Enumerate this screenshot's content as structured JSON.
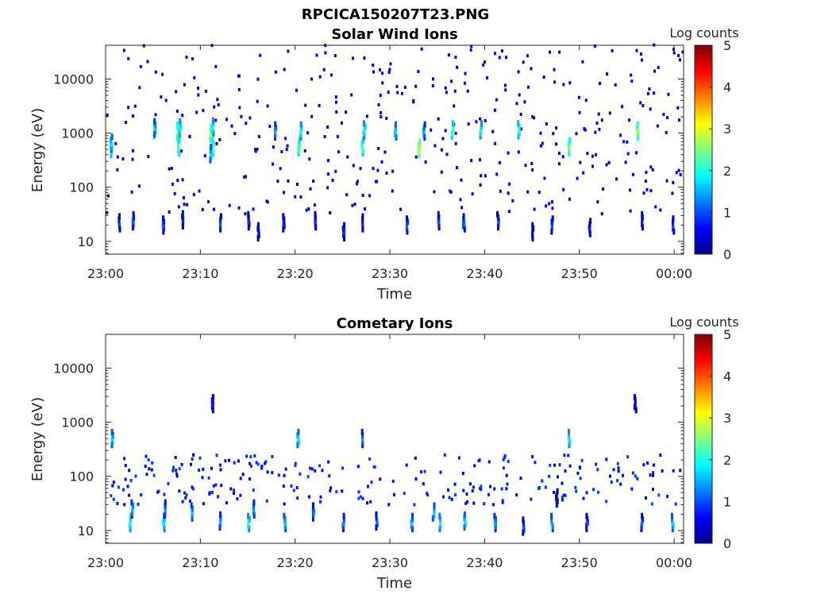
{
  "figure_title": "RPCICA150207T23.PNG",
  "chart_data": [
    {
      "type": "heatmap",
      "title": "Solar Wind Ions",
      "xlabel": "Time",
      "ylabel": "Energy (eV)",
      "x_ticks": [
        "23:00",
        "23:10",
        "23:20",
        "23:30",
        "23:40",
        "23:50",
        "00:00"
      ],
      "x_tick_minutes": [
        0,
        10,
        20,
        30,
        40,
        50,
        60
      ],
      "xlim_minutes": [
        0,
        61
      ],
      "y_scale": "log",
      "y_ticks": [
        "10",
        "100",
        "1000",
        "10000"
      ],
      "y_tick_values": [
        10,
        100,
        1000,
        10000
      ],
      "ylim": [
        5.8,
        42000
      ],
      "colorbar": {
        "label": "Log counts",
        "range": [
          0,
          5
        ],
        "ticks": [
          "0",
          "1",
          "2",
          "3",
          "4",
          "5"
        ],
        "colormap": "jet"
      },
      "features": [
        {
          "t": 0.5,
          "e": 520,
          "v": 2.2
        },
        {
          "t": 0.5,
          "e": 650,
          "v": 1.8
        },
        {
          "t": 5.0,
          "e": 1150,
          "v": 2.5
        },
        {
          "t": 5.1,
          "e": 1250,
          "v": 1.6
        },
        {
          "t": 7.5,
          "e": 1100,
          "v": 2.6
        },
        {
          "t": 7.6,
          "e": 560,
          "v": 2.4
        },
        {
          "t": 7.7,
          "e": 1250,
          "v": 2.0
        },
        {
          "t": 11.0,
          "e": 1000,
          "v": 2.8
        },
        {
          "t": 11.2,
          "e": 560,
          "v": 2.5
        },
        {
          "t": 11.0,
          "e": 420,
          "v": 1.7
        },
        {
          "t": 11.2,
          "e": 1300,
          "v": 2.0
        },
        {
          "t": 17.8,
          "e": 1100,
          "v": 1.5
        },
        {
          "t": 20.3,
          "e": 560,
          "v": 2.4
        },
        {
          "t": 20.5,
          "e": 1100,
          "v": 2.0
        },
        {
          "t": 27.0,
          "e": 560,
          "v": 2.3
        },
        {
          "t": 27.2,
          "e": 1150,
          "v": 2.0
        },
        {
          "t": 30.5,
          "e": 1100,
          "v": 1.8
        },
        {
          "t": 33.0,
          "e": 520,
          "v": 2.9
        },
        {
          "t": 33.5,
          "e": 1100,
          "v": 1.5
        },
        {
          "t": 36.5,
          "e": 1150,
          "v": 2.3
        },
        {
          "t": 39.5,
          "e": 1150,
          "v": 2.0
        },
        {
          "t": 43.5,
          "e": 1150,
          "v": 2.2
        },
        {
          "t": 48.8,
          "e": 560,
          "v": 2.6
        },
        {
          "t": 56.0,
          "e": 1100,
          "v": 2.7
        },
        {
          "t": 1.3,
          "e": 22,
          "v": 1.0
        },
        {
          "t": 2.8,
          "e": 24,
          "v": 1.1
        },
        {
          "t": 6.0,
          "e": 20,
          "v": 1.1
        },
        {
          "t": 8.0,
          "e": 25,
          "v": 0.8
        },
        {
          "t": 12.0,
          "e": 22,
          "v": 1.1
        },
        {
          "t": 15.0,
          "e": 24,
          "v": 0.9
        },
        {
          "t": 16.0,
          "e": 15,
          "v": 0.7
        },
        {
          "t": 18.7,
          "e": 22,
          "v": 0.8
        },
        {
          "t": 22.0,
          "e": 24,
          "v": 0.9
        },
        {
          "t": 25.0,
          "e": 15,
          "v": 1.0
        },
        {
          "t": 27.0,
          "e": 22,
          "v": 0.8
        },
        {
          "t": 31.7,
          "e": 20,
          "v": 1.2
        },
        {
          "t": 35.0,
          "e": 24,
          "v": 1.1
        },
        {
          "t": 37.7,
          "e": 22,
          "v": 1.2
        },
        {
          "t": 41.3,
          "e": 24,
          "v": 1.0
        },
        {
          "t": 45.0,
          "e": 15,
          "v": 0.7
        },
        {
          "t": 47.0,
          "e": 20,
          "v": 1.1
        },
        {
          "t": 51.0,
          "e": 18,
          "v": 0.8
        },
        {
          "t": 56.5,
          "e": 24,
          "v": 0.8
        },
        {
          "t": 59.8,
          "e": 20,
          "v": 1.0
        }
      ]
    },
    {
      "type": "heatmap",
      "title": "Cometary Ions",
      "xlabel": "Time",
      "ylabel": "Energy (eV)",
      "x_ticks": [
        "23:00",
        "23:10",
        "23:20",
        "23:30",
        "23:40",
        "23:50",
        "00:00"
      ],
      "x_tick_minutes": [
        0,
        10,
        20,
        30,
        40,
        50,
        60
      ],
      "xlim_minutes": [
        0,
        61
      ],
      "y_scale": "log",
      "y_ticks": [
        "10",
        "100",
        "1000",
        "10000"
      ],
      "y_tick_values": [
        10,
        100,
        1000,
        10000
      ],
      "ylim": [
        5.8,
        42000
      ],
      "colorbar": {
        "label": "Log counts",
        "range": [
          0,
          5
        ],
        "ticks": [
          "0",
          "1",
          "2",
          "3",
          "4",
          "5"
        ],
        "colormap": "jet"
      },
      "features": [
        {
          "t": 2.5,
          "e": 14,
          "v": 2.1
        },
        {
          "t": 2.7,
          "e": 25,
          "v": 1.6
        },
        {
          "t": 6.0,
          "e": 14,
          "v": 1.9
        },
        {
          "t": 6.2,
          "e": 25,
          "v": 1.4
        },
        {
          "t": 9.0,
          "e": 22,
          "v": 1.6
        },
        {
          "t": 12.0,
          "e": 15,
          "v": 1.5
        },
        {
          "t": 15.0,
          "e": 14,
          "v": 2.0
        },
        {
          "t": 15.5,
          "e": 25,
          "v": 1.5
        },
        {
          "t": 18.8,
          "e": 14,
          "v": 1.7
        },
        {
          "t": 21.8,
          "e": 22,
          "v": 1.3
        },
        {
          "t": 25.0,
          "e": 14,
          "v": 1.4
        },
        {
          "t": 28.5,
          "e": 15,
          "v": 1.2
        },
        {
          "t": 32.2,
          "e": 14,
          "v": 1.6
        },
        {
          "t": 34.5,
          "e": 22,
          "v": 1.7
        },
        {
          "t": 35.2,
          "e": 14,
          "v": 1.9
        },
        {
          "t": 37.8,
          "e": 15,
          "v": 1.8
        },
        {
          "t": 41.0,
          "e": 14,
          "v": 1.5
        },
        {
          "t": 44.0,
          "e": 12,
          "v": 1.1
        },
        {
          "t": 47.0,
          "e": 14,
          "v": 1.6
        },
        {
          "t": 47.5,
          "e": 40,
          "v": 0.6
        },
        {
          "t": 50.7,
          "e": 14,
          "v": 1.1
        },
        {
          "t": 56.5,
          "e": 14,
          "v": 1.2
        },
        {
          "t": 59.7,
          "e": 14,
          "v": 1.7
        },
        {
          "t": 0.6,
          "e": 500,
          "v": 1.7
        },
        {
          "t": 20.2,
          "e": 500,
          "v": 1.8
        },
        {
          "t": 27.0,
          "e": 500,
          "v": 1.4
        },
        {
          "t": 48.8,
          "e": 500,
          "v": 2.0
        },
        {
          "t": 11.2,
          "e": 2200,
          "v": 0.8
        },
        {
          "t": 55.8,
          "e": 2200,
          "v": 0.7
        }
      ]
    }
  ]
}
